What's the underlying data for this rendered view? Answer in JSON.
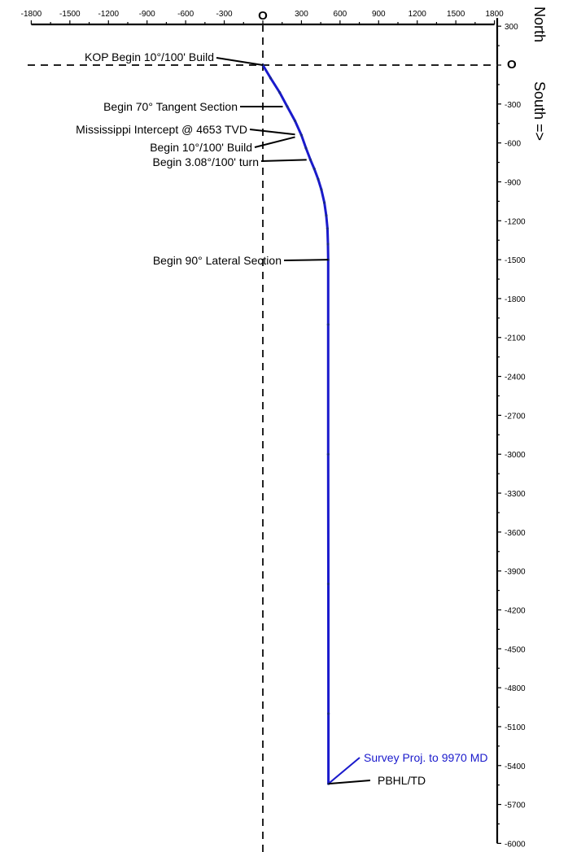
{
  "chart_data": {
    "type": "line",
    "title": "",
    "x_axis": {
      "range": [
        -1800,
        1800
      ],
      "ticks": [
        "-1800",
        "-1500",
        "-1200",
        "-900",
        "-600",
        "-300",
        "O",
        "300",
        "600",
        "900",
        "1200",
        "1500",
        "1800"
      ],
      "tick_values": [
        -1800,
        -1500,
        -1200,
        -900,
        -600,
        -300,
        0,
        300,
        600,
        900,
        1200,
        1500,
        1800
      ]
    },
    "y_axis": {
      "range": [
        -6000,
        300
      ],
      "ticks": [
        "300",
        "O",
        "-300",
        "-600",
        "-900",
        "-1200",
        "-1500",
        "-1800",
        "-2100",
        "-2400",
        "-2700",
        "-3000",
        "-3300",
        "-3600",
        "-3900",
        "-4200",
        "-4500",
        "-4800",
        "-5100",
        "-5400",
        "-5700",
        "-6000"
      ],
      "tick_values": [
        300,
        0,
        -300,
        -600,
        -900,
        -1200,
        -1500,
        -1800,
        -2100,
        -2400,
        -2700,
        -3000,
        -3300,
        -3600,
        -3900,
        -4200,
        -4500,
        -4800,
        -5100,
        -5400,
        -5700,
        -6000
      ]
    },
    "side_labels": {
      "north": "North",
      "south": "South =>"
    },
    "grid": false,
    "series": [
      {
        "color": "#1a1acc",
        "points": [
          [
            0,
            0
          ],
          [
            60,
            -100
          ],
          [
            130,
            -210
          ],
          [
            190,
            -320
          ],
          [
            250,
            -430
          ],
          [
            300,
            -540
          ],
          [
            335,
            -640
          ],
          [
            370,
            -730
          ],
          [
            400,
            -800
          ],
          [
            430,
            -880
          ],
          [
            455,
            -960
          ],
          [
            478,
            -1060
          ],
          [
            493,
            -1160
          ],
          [
            502,
            -1260
          ],
          [
            506,
            -1380
          ],
          [
            508,
            -1500
          ],
          [
            508,
            -2000
          ],
          [
            508,
            -3000
          ],
          [
            509,
            -4000
          ],
          [
            510,
            -5000
          ],
          [
            510,
            -5540
          ]
        ]
      }
    ],
    "annotations": [
      {
        "text": "KOP Begin  10°/100' Build",
        "x": 0,
        "y": 0
      },
      {
        "text": "Begin  70° Tangent Section",
        "x": 155,
        "y": -320
      },
      {
        "text": "Mississippi Intercept @ 4653 TVD",
        "x": 250,
        "y": -535
      },
      {
        "text": "Begin  10°/100' Build",
        "x": 250,
        "y": -555
      },
      {
        "text": "Begin 3.08°/100' turn",
        "x": 340,
        "y": -730
      },
      {
        "text": "Begin  90° Lateral Section",
        "x": 508,
        "y": -1500
      },
      {
        "text": "Survey Proj. to  9970 MD",
        "x": 510,
        "y": -5540
      },
      {
        "text": "PBHL/TD",
        "x": 510,
        "y": -5540
      }
    ]
  }
}
